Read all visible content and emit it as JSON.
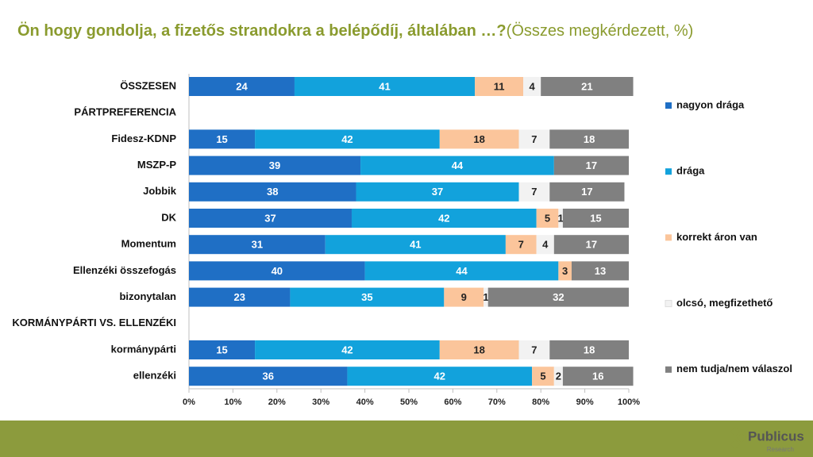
{
  "chart_data": {
    "type": "stacked-bar-horizontal",
    "title": "Ön hogy gondolja, a fizetős strandokra a belépődíj, általában …?",
    "subtitle": "(Összes megkérdezett, %)",
    "categories": [
      "ÖSSZESEN",
      "PÁRTPREFERENCIA",
      "Fidesz-KDNP",
      "MSZP-P",
      "Jobbik",
      "DK",
      "Momentum",
      "Ellenzéki összefogás",
      "bizonytalan",
      "KORMÁNYPÁRTI VS. ELLENZÉKI",
      "kormánypárti",
      "ellenzéki"
    ],
    "series": [
      {
        "name": "nagyon drága",
        "color": "#1f6fc5",
        "values": [
          24,
          null,
          15,
          39,
          38,
          37,
          31,
          40,
          23,
          null,
          15,
          36
        ]
      },
      {
        "name": "drága",
        "color": "#12a2dc",
        "values": [
          41,
          null,
          42,
          44,
          37,
          42,
          41,
          44,
          35,
          null,
          42,
          42
        ]
      },
      {
        "name": "korrekt áron van",
        "color": "#fbc59b",
        "values": [
          11,
          null,
          18,
          null,
          null,
          5,
          7,
          3,
          9,
          null,
          18,
          5
        ]
      },
      {
        "name": "olcsó, megfizethető",
        "color": "#f2f2f2",
        "values": [
          4,
          null,
          7,
          null,
          7,
          1,
          4,
          null,
          1,
          null,
          7,
          2
        ]
      },
      {
        "name": "nem tudja/nem válaszol",
        "color": "#808080",
        "values": [
          21,
          null,
          18,
          17,
          17,
          15,
          17,
          13,
          32,
          null,
          18,
          16
        ]
      }
    ],
    "xlim": [
      0,
      100
    ],
    "xticks": [
      {
        "value": 0,
        "label": "0%"
      },
      {
        "value": 10,
        "label": "10%"
      },
      {
        "value": 20,
        "label": "20%"
      },
      {
        "value": 30,
        "label": "30%"
      },
      {
        "value": 40,
        "label": "40%"
      },
      {
        "value": 50,
        "label": "50%"
      },
      {
        "value": 60,
        "label": "60%"
      },
      {
        "value": 70,
        "label": "70%"
      },
      {
        "value": 80,
        "label": "80%"
      },
      {
        "value": 90,
        "label": "90%"
      },
      {
        "value": 100,
        "label": "100%"
      }
    ],
    "legend": "right"
  },
  "footer": {
    "logo": "Publicus",
    "logo_sub": "Research"
  }
}
